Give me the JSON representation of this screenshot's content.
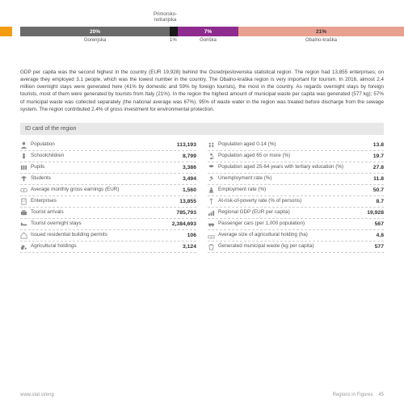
{
  "chart": {
    "segments": [
      {
        "width_pct": 3,
        "color": "#f39c12",
        "label_pct": "",
        "bottom_label": ""
      },
      {
        "width_pct": 2,
        "color": "#ffffff",
        "label_pct": "",
        "bottom_label": ""
      },
      {
        "width_pct": 37,
        "color": "#6b6b6b",
        "label_pct": "20%",
        "bottom_label": "Gorenjska"
      },
      {
        "width_pct": 2,
        "color": "#1a1a1a",
        "label_pct": "",
        "bottom_label": "",
        "top_label": "Primorsko-\nnotranjska",
        "tiny_pct": "1%"
      },
      {
        "width_pct": 15,
        "color": "#8e2b8e",
        "label_pct": "7%",
        "bottom_label": "Goriška"
      },
      {
        "width_pct": 41,
        "color": "#e8a090",
        "label_pct": "21%",
        "bottom_label": "Obalno-kraška"
      }
    ]
  },
  "paragraph": "GDP per capita was the second highest in the country (EUR 19,928) behind the Osrednjeslovenska statistical region. The region had 13,855 enterprises; on average they employed 3.1 people, which was the lowest number in the country. The Obalno-kraška region is very important for tourism. In 2016, almost 2.4 million overnight stays were generated here (41% by domestic and 59% by foreign tourists), the most in the country. As regards overnight stays by foreign tourists, most of them were generated by tourists from Italy (21%). In the region the highest amount of municipal waste per capita was generated (577 kg); 57% of municipal waste was collected separately (the national average was 67%). 95% of waste water in the region was treated before discharge from the sewage system. The region contributed 2.4% of gross investment for environmental protection.",
  "card_title": "ID card of the region",
  "rows_left": [
    {
      "icon": "person",
      "label": "Population",
      "value": "113,193"
    },
    {
      "icon": "child",
      "label": "Schoolchildren",
      "value": "8,799"
    },
    {
      "icon": "books",
      "label": "Pupils",
      "value": "3,386"
    },
    {
      "icon": "grad",
      "label": "Students",
      "value": "3,494"
    },
    {
      "icon": "money",
      "label": "Average monthly gross earnings (EUR)",
      "value": "1,560"
    },
    {
      "icon": "building",
      "label": "Enterprises",
      "value": "13,855"
    },
    {
      "icon": "suitcase",
      "label": "Tourist arrivals",
      "value": "785,793"
    },
    {
      "icon": "bed",
      "label": "Tourist overnight stays",
      "value": "2,384,693"
    },
    {
      "icon": "house",
      "label": "Issued residential building permits",
      "value": "106"
    },
    {
      "icon": "tractor",
      "label": "Agricultural holdings",
      "value": "3,124"
    }
  ],
  "rows_right": [
    {
      "icon": "kids",
      "label": "Population aged 0-14 (%)",
      "value": "13.8"
    },
    {
      "icon": "elder",
      "label": "Population aged 65 or more (%)",
      "value": "19.7"
    },
    {
      "icon": "grad2",
      "label": "Population aged 25-64 years with tertiary education (%)",
      "value": "27.8"
    },
    {
      "icon": "unemp",
      "label": "Unemployment rate (%)",
      "value": "11.8"
    },
    {
      "icon": "emp",
      "label": "Employment rate (%)",
      "value": "50.7"
    },
    {
      "icon": "poverty",
      "label": "At-risk-of-poverty rate (% of persons)",
      "value": "8.7"
    },
    {
      "icon": "gdp",
      "label": "Regional GDP (EUR per capita)",
      "value": "19,928"
    },
    {
      "icon": "car",
      "label": "Passenger cars (per 1,000 population)",
      "value": "567"
    },
    {
      "icon": "farm",
      "label": "Average size of agricultural holding (ha)",
      "value": "4.8"
    },
    {
      "icon": "trash",
      "label": "Generated municipal waste (kg per capita)",
      "value": "577"
    }
  ],
  "footer": {
    "left": "www.stat.si/eng",
    "right_title": "Regions in Figures",
    "page": "45"
  }
}
